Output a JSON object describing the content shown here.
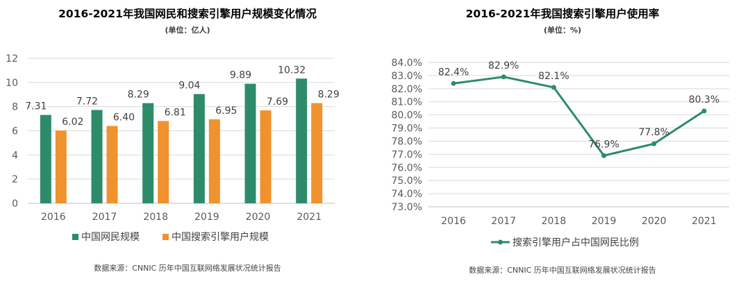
{
  "chart_data": [
    {
      "type": "bar",
      "title": "2016-2021年我国网民和搜索引擎用户规模变化情况",
      "unit_label": "(单位：亿人)",
      "categories": [
        "2016",
        "2017",
        "2018",
        "2019",
        "2020",
        "2021"
      ],
      "series": [
        {
          "name": "中国网民规模",
          "values": [
            7.31,
            7.72,
            8.29,
            9.04,
            9.89,
            10.32
          ],
          "color": "#2e8b6a"
        },
        {
          "name": "中国搜索引擎用户规模",
          "values": [
            6.02,
            6.4,
            6.81,
            6.95,
            7.69,
            8.29
          ],
          "color": "#f0922e"
        }
      ],
      "ylim": [
        0,
        12
      ],
      "yticks": [
        0,
        2,
        4,
        6,
        8,
        10,
        12
      ],
      "grid": true,
      "legend_position": "bottom",
      "source": "数据来源：CNNIC 历年中国互联网络发展状况统计报告"
    },
    {
      "type": "line",
      "title": "2016-2021年我国搜索引擎用户使用率",
      "unit_label": "(单位：%)",
      "categories": [
        "2016",
        "2017",
        "2018",
        "2019",
        "2020",
        "2021"
      ],
      "series": [
        {
          "name": "搜索引擎用户占中国网民比例",
          "values": [
            82.4,
            82.9,
            82.1,
            76.9,
            77.8,
            80.3
          ],
          "color": "#2e8b6a"
        }
      ],
      "ylim": [
        73.0,
        84.0
      ],
      "yticks": [
        73.0,
        74.0,
        75.0,
        76.0,
        77.0,
        78.0,
        79.0,
        80.0,
        81.0,
        82.0,
        83.0,
        84.0
      ],
      "grid": true,
      "legend_position": "bottom",
      "source": "数据来源：CNNIC 历年中国互联网络发展状况统计报告"
    }
  ]
}
